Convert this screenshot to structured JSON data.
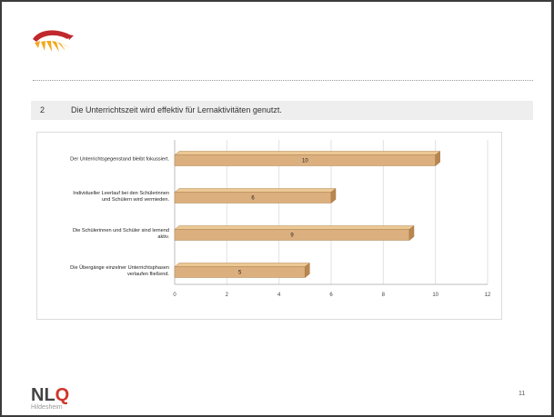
{
  "logo": {
    "icon": "sunrise-fan-logo-icon",
    "colors": [
      "#c0282d",
      "#f5a71c",
      "#f7c450"
    ]
  },
  "question": {
    "number": "2",
    "text": "Die Unterrichtszeit wird effektiv für Lernaktivitäten genutzt."
  },
  "footer": {
    "org": "NLQ",
    "org_accent": "Q",
    "city": "Hildesheim",
    "page_number": "11"
  },
  "chart_data": {
    "type": "bar",
    "orientation": "horizontal",
    "style": "3d",
    "bar_color": "#dcb07e",
    "categories": [
      [
        "Der Unterrichtsgegenstand bleibt fokussiert."
      ],
      [
        "Individueller Leerlauf bei den Schülerinnen",
        "und Schülern wird vermieden."
      ],
      [
        "Die Schülerinnen und Schüler sind lernend",
        "aktiv."
      ],
      [
        "Die Übergänge einzelner Unterrichtsphasen",
        "verlaufen fließend."
      ]
    ],
    "values": [
      10,
      6,
      9,
      5
    ],
    "xlim": [
      0,
      12
    ],
    "xticks": [
      "0",
      "2",
      "4",
      "6",
      "8",
      "10",
      "12"
    ],
    "grid": true,
    "legend": "none"
  }
}
